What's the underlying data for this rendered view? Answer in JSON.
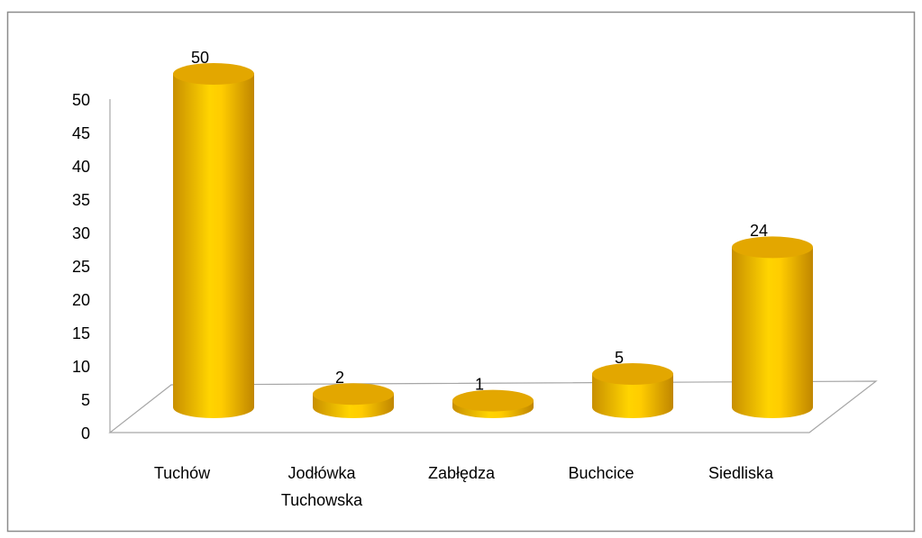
{
  "chart_data": {
    "type": "bar3d",
    "categories": [
      "Tuchów",
      "Jodłówka Tuchowska",
      "Zabłędza",
      "Buchcice",
      "Siedliska"
    ],
    "values": [
      50,
      2,
      1,
      5,
      24
    ],
    "color": "#ffc800",
    "ylim": [
      0,
      50
    ],
    "yticks": [
      0,
      5,
      10,
      15,
      20,
      25,
      30,
      35,
      40,
      45,
      50
    ],
    "grid": false
  }
}
